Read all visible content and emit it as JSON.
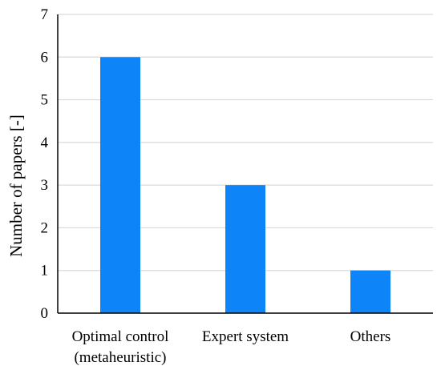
{
  "chart_data": {
    "type": "bar",
    "title": "",
    "xlabel": "",
    "ylabel": "Number of papers [-]",
    "categories": [
      [
        "Optimal control",
        "(metaheuristic)"
      ],
      [
        "Expert system"
      ],
      [
        "Others"
      ]
    ],
    "values": [
      6,
      3,
      1
    ],
    "ylim": [
      0,
      7
    ],
    "yticks": [
      0,
      1,
      2,
      3,
      4,
      5,
      6,
      7
    ],
    "grid": true,
    "legend": "none",
    "colors": {
      "bar": "#0d84f7",
      "grid": "#d9d9d9",
      "axis": "#000000"
    }
  }
}
